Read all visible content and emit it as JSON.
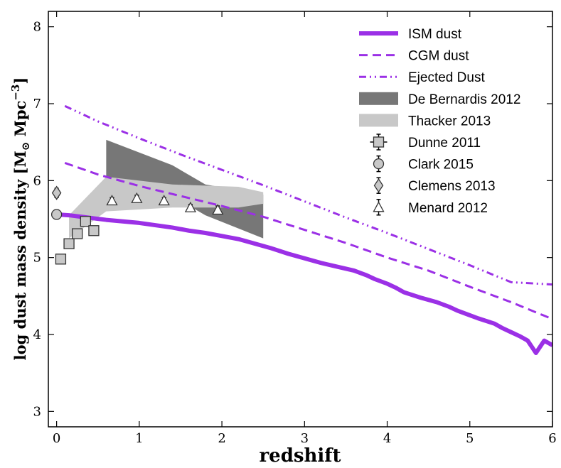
{
  "chart_data": {
    "type": "line",
    "xlabel": "redshift",
    "ylabel_prefix": "log dust mass density [M",
    "ylabel_sub": "⊙",
    "ylabel_mid": " Mpc",
    "ylabel_sup": "−3",
    "ylabel_suffix": "]",
    "xlim": [
      -0.1,
      6.0
    ],
    "ylim": [
      2.8,
      8.2
    ],
    "xticks": [
      "0",
      "1",
      "2",
      "3",
      "4",
      "5",
      "6"
    ],
    "yticks": [
      "3",
      "4",
      "5",
      "6",
      "7",
      "8"
    ],
    "xtick_values": [
      0,
      1,
      2,
      3,
      4,
      5,
      6
    ],
    "ytick_values": [
      3,
      4,
      5,
      6,
      7,
      8
    ],
    "legend_position": "top-right",
    "series": [
      {
        "name": "ISM dust",
        "style": "solid",
        "color": "#9b30e6",
        "width": 6,
        "x": [
          0.0,
          0.15,
          0.3,
          0.45,
          0.6,
          0.8,
          1.0,
          1.2,
          1.4,
          1.6,
          1.8,
          2.0,
          2.2,
          2.4,
          2.6,
          2.8,
          3.0,
          3.2,
          3.4,
          3.6,
          3.75,
          3.85,
          4.0,
          4.1,
          4.2,
          4.4,
          4.6,
          4.75,
          4.85,
          5.0,
          5.1,
          5.3,
          5.4,
          5.5,
          5.6,
          5.7,
          5.8,
          5.9,
          6.0
        ],
        "y": [
          5.56,
          5.55,
          5.53,
          5.51,
          5.49,
          5.47,
          5.45,
          5.42,
          5.39,
          5.35,
          5.32,
          5.28,
          5.24,
          5.18,
          5.12,
          5.05,
          4.99,
          4.93,
          4.88,
          4.83,
          4.77,
          4.72,
          4.66,
          4.61,
          4.55,
          4.48,
          4.42,
          4.36,
          4.31,
          4.25,
          4.21,
          4.14,
          4.08,
          4.03,
          3.98,
          3.92,
          3.76,
          3.92,
          3.86
        ]
      },
      {
        "name": "CGM dust",
        "style": "dashed",
        "color": "#9b30e6",
        "width": 3,
        "x": [
          0.1,
          0.5,
          1.0,
          1.5,
          2.0,
          2.5,
          3.0,
          3.5,
          4.0,
          4.5,
          5.0,
          5.5,
          6.0
        ],
        "y": [
          6.23,
          6.08,
          5.93,
          5.8,
          5.67,
          5.53,
          5.36,
          5.19,
          5.0,
          4.83,
          4.62,
          4.42,
          4.2
        ]
      },
      {
        "name": "Ejected Dust",
        "style": "dashdot",
        "color": "#9b30e6",
        "width": 3,
        "x": [
          0.1,
          0.5,
          1.0,
          1.5,
          2.0,
          2.5,
          3.0,
          3.5,
          4.0,
          4.5,
          5.0,
          5.5,
          6.0
        ],
        "y": [
          6.97,
          6.77,
          6.55,
          6.34,
          6.14,
          5.94,
          5.73,
          5.52,
          5.32,
          5.11,
          4.9,
          4.68,
          4.65
        ]
      }
    ],
    "bands": [
      {
        "name": "De Bernardis 2012",
        "color": "#777777",
        "x": [
          0.6,
          1.4,
          1.8,
          2.5
        ],
        "lower": [
          6.05,
          5.8,
          5.55,
          5.25
        ],
        "upper": [
          6.53,
          6.2,
          5.95,
          5.82
        ]
      },
      {
        "name": "Thacker 2013",
        "color": "#c8c8c8",
        "x": [
          0.15,
          0.6,
          1.4,
          2.2,
          2.5
        ],
        "lower": [
          5.25,
          5.6,
          5.65,
          5.65,
          5.7
        ],
        "upper": [
          5.55,
          6.05,
          5.95,
          5.92,
          5.85
        ]
      }
    ],
    "points": [
      {
        "name": "Dunne 2011",
        "marker": "square",
        "x": [
          0.05,
          0.15,
          0.25,
          0.35,
          0.45
        ],
        "y": [
          4.98,
          5.18,
          5.31,
          5.47,
          5.35
        ],
        "yerr": [
          0.03,
          0.03,
          0.04,
          0.04,
          0.05
        ]
      },
      {
        "name": "Clark 2015",
        "marker": "circle",
        "x": [
          0.0
        ],
        "y": [
          5.56
        ],
        "yerr": [
          0.06
        ]
      },
      {
        "name": "Clemens 2013",
        "marker": "diamond",
        "x": [
          0.0
        ],
        "y": [
          5.84
        ],
        "yerr": [
          0.06
        ]
      },
      {
        "name": "Menard 2012",
        "marker": "triangle",
        "x": [
          0.67,
          0.97,
          1.3,
          1.62,
          1.95
        ],
        "y": [
          5.74,
          5.77,
          5.74,
          5.65,
          5.62
        ],
        "yerr": [
          0.04,
          0.04,
          0.04,
          0.04,
          0.05
        ]
      }
    ],
    "legend": [
      "ISM dust",
      "CGM dust",
      "Ejected Dust",
      "De Bernardis 2012",
      "Thacker 2013",
      "Dunne 2011",
      "Clark 2015",
      "Clemens 2013",
      "Menard 2012"
    ]
  }
}
